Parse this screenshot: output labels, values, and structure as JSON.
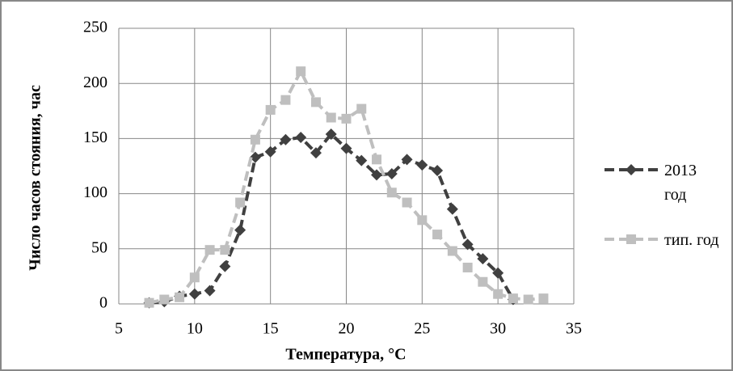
{
  "chart_data": {
    "type": "line",
    "x": [
      7,
      8,
      9,
      10,
      11,
      12,
      13,
      14,
      15,
      16,
      17,
      18,
      19,
      20,
      21,
      22,
      23,
      24,
      25,
      26,
      27,
      28,
      29,
      30,
      31,
      32,
      33
    ],
    "series": [
      {
        "name": "2013 год",
        "color": "#404040",
        "marker": "diamond",
        "values": [
          1,
          2,
          7,
          9,
          12,
          34,
          67,
          133,
          138,
          149,
          151,
          137,
          154,
          141,
          130,
          117,
          118,
          131,
          126,
          121,
          86,
          54,
          41,
          28,
          4,
          null,
          null
        ]
      },
      {
        "name": "тип. год",
        "color": "#bfbfbf",
        "marker": "square",
        "values": [
          1,
          4,
          6,
          24,
          49,
          49,
          92,
          149,
          176,
          185,
          211,
          183,
          169,
          168,
          177,
          131,
          101,
          92,
          76,
          63,
          48,
          33,
          20,
          9,
          5,
          4,
          5
        ]
      }
    ],
    "xlabel": "Температура, °C",
    "ylabel": "Число часов стояния, час",
    "xlim": [
      5,
      35
    ],
    "xticks": [
      5,
      10,
      15,
      20,
      25,
      30,
      35
    ],
    "ylim": [
      0,
      250
    ],
    "yticks": [
      0,
      50,
      100,
      150,
      200,
      250
    ],
    "grid": true,
    "legend": "right"
  }
}
